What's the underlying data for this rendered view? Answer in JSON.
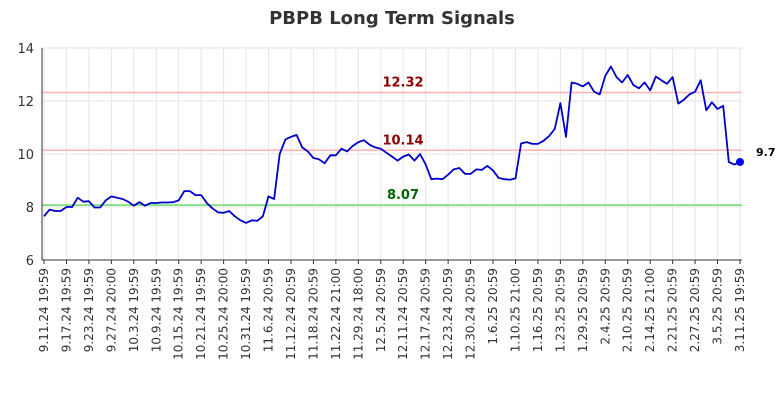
{
  "chart_data": {
    "type": "line",
    "title": "PBPB Long Term Signals",
    "xlabel": "",
    "ylabel": "",
    "ylim": [
      6,
      14
    ],
    "yticks": [
      6,
      8,
      10,
      12,
      14
    ],
    "grid": true,
    "x_tick_labels": [
      "9.11.24 19:59",
      "9.17.24 19:59",
      "9.23.24 19:59",
      "9.27.24 20:00",
      "10.3.24 19:59",
      "10.9.24 19:59",
      "10.15.24 19:59",
      "10.21.24 19:59",
      "10.25.24 20:00",
      "10.31.24 19:59",
      "11.6.24 20:59",
      "11.12.24 20:59",
      "11.18.24 20:59",
      "11.22.24 21:00",
      "11.29.24 18:00",
      "12.5.24 20:59",
      "12.11.24 20:59",
      "12.17.24 20:59",
      "12.23.24 20:59",
      "12.30.24 20:59",
      "1.6.25 20:59",
      "1.10.25 21:00",
      "1.16.25 20:59",
      "1.23.25 20:59",
      "1.29.25 20:59",
      "2.4.25 20:59",
      "2.10.25 20:59",
      "2.14.25 21:00",
      "2.21.25 20:59",
      "2.27.25 20:59",
      "3.5.25 20:59",
      "3.11.25 19:59"
    ],
    "series": [
      {
        "name": "",
        "color": "#0000cc",
        "values": [
          7.65,
          7.9,
          7.85,
          7.85,
          8.0,
          8.0,
          8.35,
          8.2,
          8.22,
          7.98,
          7.98,
          8.25,
          8.4,
          8.35,
          8.3,
          8.2,
          8.05,
          8.18,
          8.05,
          8.15,
          8.15,
          8.17,
          8.17,
          8.18,
          8.25,
          8.6,
          8.6,
          8.45,
          8.45,
          8.15,
          7.95,
          7.8,
          7.78,
          7.85,
          7.65,
          7.5,
          7.4,
          7.5,
          7.48,
          7.65,
          8.4,
          8.3,
          10.0,
          10.55,
          10.65,
          10.72,
          10.25,
          10.1,
          9.85,
          9.8,
          9.65,
          9.95,
          9.95,
          10.2,
          10.1,
          10.3,
          10.45,
          10.52,
          10.35,
          10.25,
          10.2,
          10.05,
          9.9,
          9.75,
          9.9,
          9.98,
          9.75,
          10.0,
          9.6,
          9.05,
          9.07,
          9.05,
          9.22,
          9.42,
          9.47,
          9.25,
          9.25,
          9.42,
          9.4,
          9.55,
          9.38,
          9.1,
          9.05,
          9.03,
          9.08,
          10.4,
          10.45,
          10.38,
          10.38,
          10.5,
          10.68,
          10.95,
          11.92,
          10.65,
          12.7,
          12.65,
          12.55,
          12.7,
          12.35,
          12.25,
          12.95,
          13.3,
          12.9,
          12.7,
          12.98,
          12.6,
          12.48,
          12.7,
          12.4,
          12.92,
          12.78,
          12.65,
          12.9,
          11.9,
          12.05,
          12.25,
          12.35,
          12.78,
          11.65,
          11.95,
          11.7,
          11.82,
          9.7,
          9.6,
          9.7
        ]
      }
    ],
    "levels": [
      {
        "value": 12.32,
        "label": "12.32",
        "line_color": "#ffb3b3",
        "text_color": "#8b0000"
      },
      {
        "value": 10.14,
        "label": "10.14",
        "line_color": "#ffb3b3",
        "text_color": "#8b0000"
      },
      {
        "value": 8.07,
        "label": "8.07",
        "line_color": "#66dd66",
        "text_color": "#006400"
      }
    ],
    "last_value_label": "9.7",
    "last_point_color": "#0000ff"
  }
}
